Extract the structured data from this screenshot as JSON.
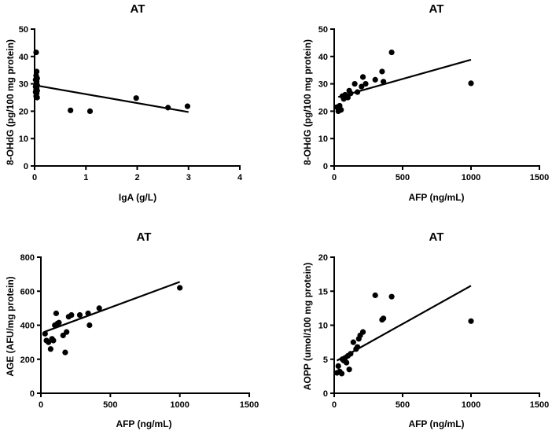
{
  "chart_data": [
    {
      "type": "scatter",
      "title": "AT",
      "xlabel": "IgA (g/L)",
      "ylabel": "8-OHdG (pg/100 mg protein)",
      "xlim": [
        0,
        4
      ],
      "ylim": [
        0,
        50
      ],
      "xticks": [
        0,
        1,
        2,
        3,
        4
      ],
      "yticks": [
        0,
        10,
        20,
        30,
        40,
        50
      ],
      "points": [
        [
          0.03,
          41.5
        ],
        [
          0.04,
          34.5
        ],
        [
          0.03,
          33.0
        ],
        [
          0.05,
          32.0
        ],
        [
          0.02,
          31.5
        ],
        [
          0.04,
          30.8
        ],
        [
          0.03,
          30.0
        ],
        [
          0.05,
          29.5
        ],
        [
          0.02,
          29.0
        ],
        [
          0.04,
          28.5
        ],
        [
          0.03,
          28.0
        ],
        [
          0.05,
          27.5
        ],
        [
          0.02,
          27.0
        ],
        [
          0.04,
          26.5
        ],
        [
          0.03,
          25.5
        ],
        [
          0.05,
          25.0
        ],
        [
          0.7,
          20.3
        ],
        [
          1.08,
          20.0
        ],
        [
          1.98,
          24.8
        ],
        [
          2.6,
          21.3
        ],
        [
          2.98,
          21.8
        ]
      ],
      "fit": [
        [
          0,
          29.5
        ],
        [
          3.0,
          19.7
        ]
      ]
    },
    {
      "type": "scatter",
      "title": "AT",
      "xlabel": "AFP (ng/mL)",
      "ylabel": "8-OHdG (pg/100 mg protein)",
      "xlim": [
        0,
        1500
      ],
      "ylim": [
        0,
        50
      ],
      "xticks": [
        0,
        500,
        1000,
        1500
      ],
      "yticks": [
        0,
        10,
        20,
        30,
        40,
        50
      ],
      "points": [
        [
          20,
          21.5
        ],
        [
          30,
          20.0
        ],
        [
          40,
          22.0
        ],
        [
          50,
          20.5
        ],
        [
          60,
          25.5
        ],
        [
          70,
          24.5
        ],
        [
          80,
          26.0
        ],
        [
          100,
          25.0
        ],
        [
          110,
          27.5
        ],
        [
          120,
          26.5
        ],
        [
          150,
          30.0
        ],
        [
          170,
          27.0
        ],
        [
          200,
          29.0
        ],
        [
          210,
          32.5
        ],
        [
          230,
          30.0
        ],
        [
          300,
          31.5
        ],
        [
          350,
          34.5
        ],
        [
          360,
          30.8
        ],
        [
          420,
          41.5
        ],
        [
          1000,
          30.2
        ]
      ],
      "fit": [
        [
          30,
          25.2
        ],
        [
          1000,
          38.8
        ]
      ]
    },
    {
      "type": "scatter",
      "title": "AT",
      "xlabel": "AFP (ng/mL)",
      "ylabel": "AGE (AFU/mg protein)",
      "xlim": [
        0,
        1500
      ],
      "ylim": [
        0,
        800
      ],
      "xticks": [
        0,
        500,
        1000,
        1500
      ],
      "yticks": [
        0,
        200,
        400,
        600,
        800
      ],
      "points": [
        [
          30,
          350
        ],
        [
          40,
          310
        ],
        [
          55,
          300
        ],
        [
          70,
          260
        ],
        [
          80,
          320
        ],
        [
          90,
          310
        ],
        [
          100,
          400
        ],
        [
          110,
          470
        ],
        [
          120,
          410
        ],
        [
          130,
          415
        ],
        [
          160,
          340
        ],
        [
          175,
          240
        ],
        [
          185,
          360
        ],
        [
          200,
          450
        ],
        [
          220,
          460
        ],
        [
          280,
          460
        ],
        [
          340,
          470
        ],
        [
          350,
          400
        ],
        [
          420,
          500
        ],
        [
          1000,
          620
        ]
      ],
      "fit": [
        [
          30,
          362
        ],
        [
          1000,
          655
        ]
      ]
    },
    {
      "type": "scatter",
      "title": "AT",
      "xlabel": "AFP (ng/mL)",
      "ylabel": "AOPP (umol/100 mg protein)",
      "xlim": [
        0,
        1500
      ],
      "ylim": [
        0,
        20
      ],
      "xticks": [
        0,
        500,
        1000,
        1500
      ],
      "yticks": [
        0,
        5,
        10,
        15,
        20
      ],
      "points": [
        [
          20,
          3.0
        ],
        [
          30,
          4.0
        ],
        [
          40,
          3.2
        ],
        [
          55,
          2.9
        ],
        [
          60,
          5.0
        ],
        [
          70,
          4.8
        ],
        [
          80,
          5.2
        ],
        [
          90,
          4.5
        ],
        [
          100,
          5.5
        ],
        [
          110,
          3.5
        ],
        [
          120,
          5.8
        ],
        [
          140,
          7.5
        ],
        [
          160,
          6.5
        ],
        [
          170,
          6.8
        ],
        [
          180,
          8.0
        ],
        [
          190,
          8.5
        ],
        [
          210,
          9.0
        ],
        [
          300,
          14.4
        ],
        [
          350,
          10.8
        ],
        [
          360,
          11.0
        ],
        [
          420,
          14.2
        ],
        [
          1000,
          10.6
        ]
      ],
      "fit": [
        [
          20,
          4.8
        ],
        [
          1000,
          15.8
        ]
      ]
    }
  ]
}
